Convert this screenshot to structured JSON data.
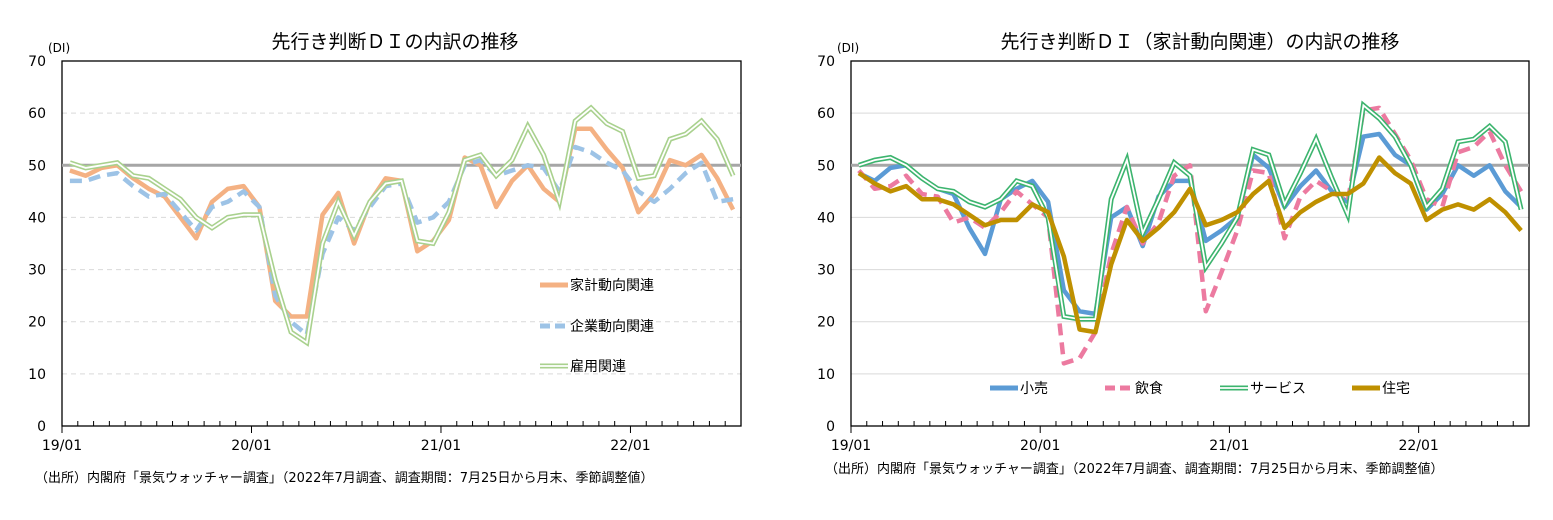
{
  "source_note": "（出所）内閣府「景気ウォッチャー調査」（2022年7月調査、調査期間：7月25日から月末、季節調整値）",
  "chart_data": [
    {
      "type": "line",
      "title": "先行き判断ＤＩの内訳の推移",
      "ylabel": "(DI)",
      "ylim": [
        0,
        70
      ],
      "yticks": [
        "0",
        "10",
        "20",
        "30",
        "40",
        "50",
        "60",
        "70"
      ],
      "xtick_labels": [
        "19/01",
        "20/01",
        "21/01",
        "22/01"
      ],
      "x_start": "2019-01",
      "x_end": "2022-07",
      "frequency": "monthly",
      "reference_line": 50,
      "grid": "dashed-horizontal",
      "legend_placement": "bottom-right",
      "series": [
        {
          "name": "家計動向関連",
          "color": "#f4b183",
          "style": "solid",
          "values": [
            49,
            48,
            49.5,
            50,
            47.5,
            45.5,
            44,
            40,
            36,
            43,
            45.5,
            46,
            42,
            24,
            21,
            21,
            40.5,
            44.7,
            35,
            43,
            47.5,
            47,
            33.5,
            35.5,
            39.5,
            51.5,
            50,
            42,
            47,
            50,
            45.5,
            43,
            57,
            57,
            53,
            49.5,
            41,
            44.5,
            51,
            50,
            52,
            47.5,
            41.5
          ]
        },
        {
          "name": "企業動向関連",
          "color": "#9dc3e6",
          "style": "dashed",
          "values": [
            47,
            47,
            48,
            48.5,
            46,
            44,
            44.5,
            41,
            37.5,
            42,
            43,
            45,
            42,
            25,
            20,
            17.5,
            33,
            40,
            37.5,
            42,
            46,
            46.5,
            39,
            40,
            43,
            50,
            51,
            48,
            49,
            50,
            49.5,
            45,
            53.5,
            52.5,
            50.5,
            49,
            45,
            43,
            45.5,
            48.5,
            50.5,
            43,
            43.5
          ]
        },
        {
          "name": "雇用関連",
          "color": "#a9d18e",
          "style": "double",
          "values": [
            50.5,
            49.5,
            50,
            50.5,
            48,
            47.5,
            45.5,
            43.5,
            40,
            38,
            40,
            40.5,
            40.5,
            28,
            18,
            16,
            35,
            43,
            36.5,
            43,
            46.5,
            47,
            35.5,
            35,
            41,
            51,
            52,
            48,
            51,
            57.5,
            52,
            43,
            58.5,
            61,
            58,
            56.5,
            47.5,
            48,
            55,
            56,
            58.5,
            55,
            48
          ]
        }
      ]
    },
    {
      "type": "line",
      "title": "先行き判断ＤＩ（家計動向関連）の内訳の推移",
      "ylabel": "(DI)",
      "ylim": [
        0,
        70
      ],
      "yticks": [
        "0",
        "10",
        "20",
        "30",
        "40",
        "50",
        "60",
        "70"
      ],
      "xtick_labels": [
        "19/01",
        "20/01",
        "21/01",
        "22/01"
      ],
      "x_start": "2019-01",
      "x_end": "2022-07",
      "frequency": "monthly",
      "reference_line": 50,
      "grid": "solid-horizontal",
      "legend_placement": "bottom",
      "series": [
        {
          "name": "小売",
          "color": "#5b9bd5",
          "style": "solid",
          "values": [
            48.5,
            47,
            49.5,
            50,
            47.5,
            45.5,
            44.5,
            38,
            33,
            43.5,
            45.5,
            47,
            43,
            26,
            22,
            21.5,
            40,
            42,
            34.5,
            44,
            47,
            47,
            35.5,
            37.5,
            40,
            52,
            49.5,
            42,
            46,
            49,
            45,
            43,
            55.5,
            56,
            52,
            50,
            41.5,
            44.5,
            50,
            48,
            50,
            45,
            42
          ]
        },
        {
          "name": "飲食",
          "color": "#ec7aa0",
          "style": "dashed",
          "values": [
            49,
            45.5,
            46,
            48,
            44.5,
            44,
            39,
            40,
            38,
            41,
            45,
            42.5,
            40,
            12,
            13,
            18,
            33,
            42,
            35,
            39,
            48,
            50,
            22,
            29.5,
            37.5,
            49,
            48.5,
            36,
            44,
            47,
            45,
            43,
            60.5,
            61,
            56,
            51,
            43.5,
            42,
            52.5,
            53.5,
            56.5,
            50,
            45
          ]
        },
        {
          "name": "サービス",
          "color": "#3cb46e",
          "style": "double",
          "values": [
            50,
            51,
            51.5,
            50,
            47.5,
            45.5,
            45,
            43,
            42,
            43.5,
            47,
            46,
            40,
            21,
            20.5,
            20.5,
            43.5,
            51,
            37,
            43.5,
            50.5,
            48,
            30.5,
            35,
            40,
            53,
            52,
            42.5,
            48.5,
            55,
            47.5,
            40.5,
            61.5,
            59,
            55.5,
            50,
            42,
            45.5,
            54.5,
            55,
            57.5,
            54.5,
            41.5
          ]
        },
        {
          "name": "住宅",
          "color": "#bf9000",
          "style": "solid",
          "values": [
            48.5,
            46.5,
            45,
            46,
            43.5,
            43.5,
            42.5,
            40.5,
            38.5,
            39.5,
            39.5,
            42.5,
            41,
            32.5,
            18.5,
            18,
            31,
            39.5,
            35.5,
            38,
            41,
            45.5,
            38.5,
            39.5,
            41,
            44.5,
            47,
            38,
            41,
            43,
            44.5,
            44.5,
            46.5,
            51.5,
            48.5,
            46.5,
            39.5,
            41.5,
            42.5,
            41.5,
            43.5,
            41,
            37.5
          ]
        }
      ]
    }
  ]
}
